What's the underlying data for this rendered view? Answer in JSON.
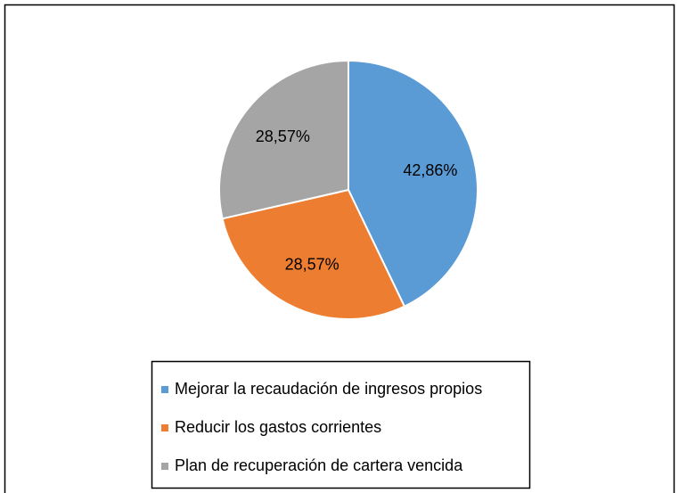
{
  "chart_data": {
    "type": "pie",
    "categories": [
      "Mejorar la recaudación de ingresos propios",
      "Reducir los gastos corrientes",
      "Plan de recuperación de cartera vencida"
    ],
    "values": [
      42.86,
      28.57,
      28.57
    ],
    "value_labels": [
      "42,86%",
      "28,57%",
      "28,57%"
    ],
    "colors": [
      "#5b9bd5",
      "#ed7d31",
      "#a5a5a5"
    ],
    "legend": "bottom"
  }
}
